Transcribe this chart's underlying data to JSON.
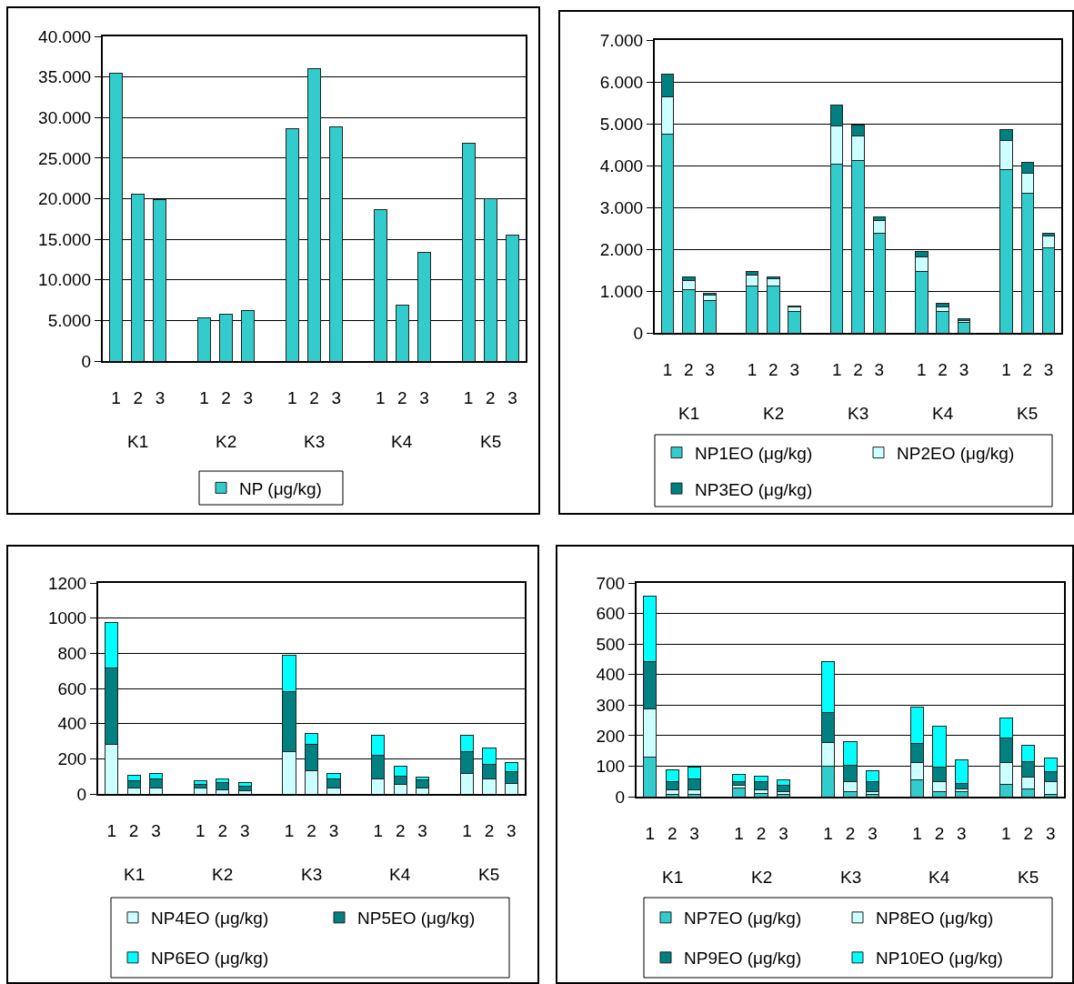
{
  "chart_data": [
    {
      "type": "bar",
      "categories": [
        "1",
        "2",
        "3",
        "1",
        "2",
        "3",
        "1",
        "2",
        "3",
        "1",
        "2",
        "3",
        "1",
        "2",
        "3"
      ],
      "series": [
        {
          "name": "NP (μg/kg)",
          "color": "#33cccc",
          "values": [
            35500,
            20600,
            19900,
            5300,
            5800,
            6200,
            28600,
            36000,
            28900,
            18600,
            6900,
            13400,
            26800,
            20000,
            15500
          ]
        }
      ],
      "ylim": [
        0,
        40000
      ],
      "yticks": [
        0,
        {
          "value": 5000,
          "label": "5.000"
        },
        {
          "value": 10000,
          "label": "10.000"
        },
        {
          "value": 15000,
          "label": "15.000"
        },
        {
          "value": 20000,
          "label": "20.000"
        },
        {
          "value": 25000,
          "label": "25.000"
        },
        {
          "value": 30000,
          "label": "30.000"
        },
        {
          "value": 35000,
          "label": "35.000"
        },
        {
          "value": 40000,
          "label": "40.000"
        }
      ],
      "grid": "y",
      "legend": "bottom",
      "annotations": [
        "K1",
        "K2",
        "K3",
        "K4",
        "K5"
      ]
    },
    {
      "type": "bar",
      "stacked": true,
      "categories": [
        "1",
        "2",
        "3",
        "1",
        "2",
        "3",
        "1",
        "2",
        "3",
        "1",
        "2",
        "3",
        "1",
        "2",
        "3"
      ],
      "series": [
        {
          "name": "NP1EO (μg/kg)",
          "color": "#33cccc",
          "values": [
            4740,
            1040,
            770,
            1120,
            1120,
            520,
            4040,
            4130,
            2380,
            1470,
            520,
            240,
            3910,
            3340,
            2030
          ]
        },
        {
          "name": "NP2EO (μg/kg)",
          "color": "#ccffff",
          "values": [
            910,
            220,
            140,
            260,
            170,
            90,
            910,
            570,
            310,
            340,
            90,
            50,
            690,
            480,
            280
          ]
        },
        {
          "name": "NP3EO (μg/kg)",
          "color": "#008080",
          "values": [
            530,
            80,
            40,
            90,
            40,
            40,
            490,
            260,
            80,
            130,
            90,
            50,
            260,
            250,
            70
          ]
        }
      ],
      "ylim": [
        0,
        7000
      ],
      "yticks": [
        0,
        {
          "value": 1000,
          "label": "1.000"
        },
        {
          "value": 2000,
          "label": "2.000"
        },
        {
          "value": 3000,
          "label": "3.000"
        },
        {
          "value": 4000,
          "label": "4.000"
        },
        {
          "value": 5000,
          "label": "5.000"
        },
        {
          "value": 6000,
          "label": "6.000"
        },
        {
          "value": 7000,
          "label": "7.000"
        }
      ],
      "grid": "y",
      "legend": "bottom",
      "annotations": [
        "K1",
        "K2",
        "K3",
        "K4",
        "K5"
      ]
    },
    {
      "type": "bar",
      "stacked": true,
      "categories": [
        "1",
        "2",
        "3",
        "1",
        "2",
        "3",
        "1",
        "2",
        "3",
        "1",
        "2",
        "3",
        "1",
        "2",
        "3"
      ],
      "series": [
        {
          "name": "NP4EO (μg/kg)",
          "color": "#ccffff",
          "values": [
            281,
            33,
            33,
            33,
            22,
            19,
            238,
            134,
            33,
            84,
            53,
            33,
            115,
            84,
            60
          ]
        },
        {
          "name": "NP5EO (μg/kg)",
          "color": "#008080",
          "values": [
            433,
            44,
            51,
            22,
            42,
            24,
            344,
            148,
            51,
            135,
            50,
            46,
            124,
            85,
            66
          ]
        },
        {
          "name": "NP6EO (μg/kg)",
          "color": "#00ffff",
          "values": [
            259,
            28,
            33,
            21,
            22,
            21,
            207,
            62,
            33,
            113,
            55,
            16,
            93,
            93,
            51
          ]
        }
      ],
      "ylim": [
        0,
        1200
      ],
      "yticks": [
        0,
        200,
        400,
        600,
        800,
        1000,
        1200
      ],
      "grid": "y",
      "legend": "bottom",
      "annotations": [
        "K1",
        "K2",
        "K3",
        "K4",
        "K5"
      ]
    },
    {
      "type": "bar",
      "stacked": true,
      "categories": [
        "1",
        "2",
        "3",
        "1",
        "2",
        "3",
        "1",
        "2",
        "3",
        "1",
        "2",
        "3",
        "1",
        "2",
        "3"
      ],
      "series": [
        {
          "name": "NP7EO (μg/kg)",
          "color": "#33cccc",
          "values": [
            131,
            7,
            7,
            28,
            10,
            7,
            101,
            17,
            7,
            54,
            17,
            16,
            40,
            24,
            7
          ]
        },
        {
          "name": "NP8EO (μg/kg)",
          "color": "#ccffff",
          "values": [
            156,
            16,
            16,
            9,
            13,
            9,
            77,
            32,
            10,
            59,
            32,
            9,
            73,
            41,
            42
          ]
        },
        {
          "name": "NP9EO (μg/kg)",
          "color": "#008080",
          "values": [
            156,
            27,
            36,
            13,
            27,
            21,
            97,
            54,
            33,
            60,
            48,
            17,
            79,
            49,
            34
          ]
        },
        {
          "name": "NP10EO (μg/kg)",
          "color": "#00ffff",
          "values": [
            215,
            39,
            37,
            23,
            16,
            17,
            168,
            76,
            34,
            120,
            135,
            78,
            65,
            54,
            43
          ]
        }
      ],
      "ylim": [
        0,
        700
      ],
      "yticks": [
        0,
        100,
        200,
        300,
        400,
        500,
        600,
        700
      ],
      "grid": "y",
      "legend": "bottom",
      "annotations": [
        "K1",
        "K2",
        "K3",
        "K4",
        "K5"
      ]
    }
  ]
}
